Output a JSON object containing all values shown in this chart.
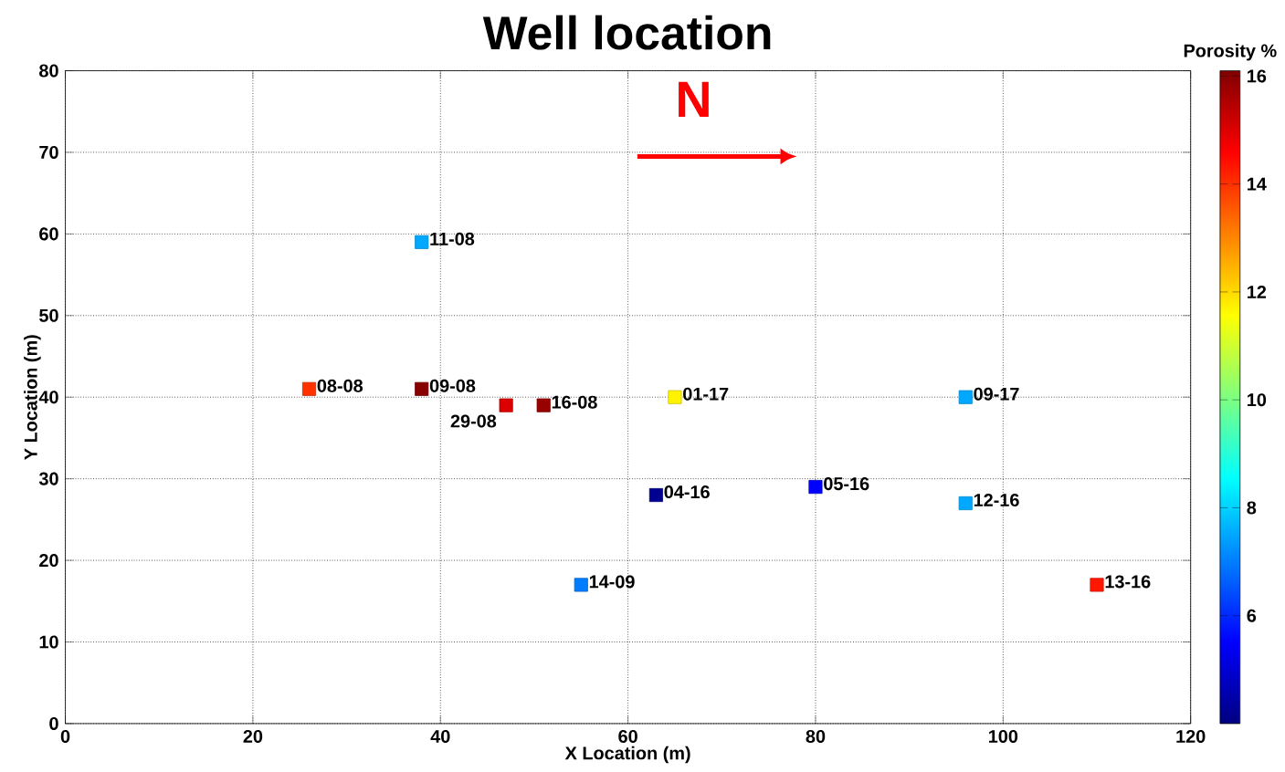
{
  "chart_data": {
    "type": "scatter",
    "title": "Well location",
    "xlabel": "X Location (m)",
    "ylabel": "Y Location (m)",
    "clabel": "Porosity %",
    "x": [
      26,
      38,
      47,
      51,
      38,
      65,
      96,
      63,
      80,
      96,
      55,
      110
    ],
    "values": [
      41,
      41,
      39,
      39,
      59,
      40,
      40,
      28,
      29,
      27,
      17,
      17
    ],
    "cvalues": [
      14.0,
      16.0,
      15.0,
      15.8,
      7.5,
      11.7,
      7.5,
      4.2,
      5.5,
      7.5,
      7.0,
      14.3
    ],
    "marker": "square",
    "grid": true,
    "xlim": [
      0,
      120
    ],
    "ylim": [
      0,
      80
    ],
    "xticks": [
      0,
      20,
      40,
      60,
      80,
      100,
      120
    ],
    "yticks": [
      0,
      10,
      20,
      30,
      40,
      50,
      60,
      70,
      80
    ],
    "clim": [
      4.0,
      16.1
    ],
    "cticks": [
      6,
      8,
      10,
      12,
      14,
      16
    ],
    "annotations": [
      {
        "text": "08-08",
        "x": 26,
        "y": 41
      },
      {
        "text": "09-08",
        "x": 38,
        "y": 41
      },
      {
        "text": "29-08",
        "x": 47,
        "y": 39
      },
      {
        "text": "16-08",
        "x": 51,
        "y": 39
      },
      {
        "text": "11-08",
        "x": 38,
        "y": 59
      },
      {
        "text": "01-17",
        "x": 65,
        "y": 40
      },
      {
        "text": "09-17",
        "x": 96,
        "y": 40
      },
      {
        "text": "04-16",
        "x": 63,
        "y": 28
      },
      {
        "text": "05-16",
        "x": 80,
        "y": 29
      },
      {
        "text": "12-16",
        "x": 96,
        "y": 27
      },
      {
        "text": "14-09",
        "x": 55,
        "y": 17
      },
      {
        "text": "13-16",
        "x": 110,
        "y": 17
      },
      "N"
    ]
  }
}
